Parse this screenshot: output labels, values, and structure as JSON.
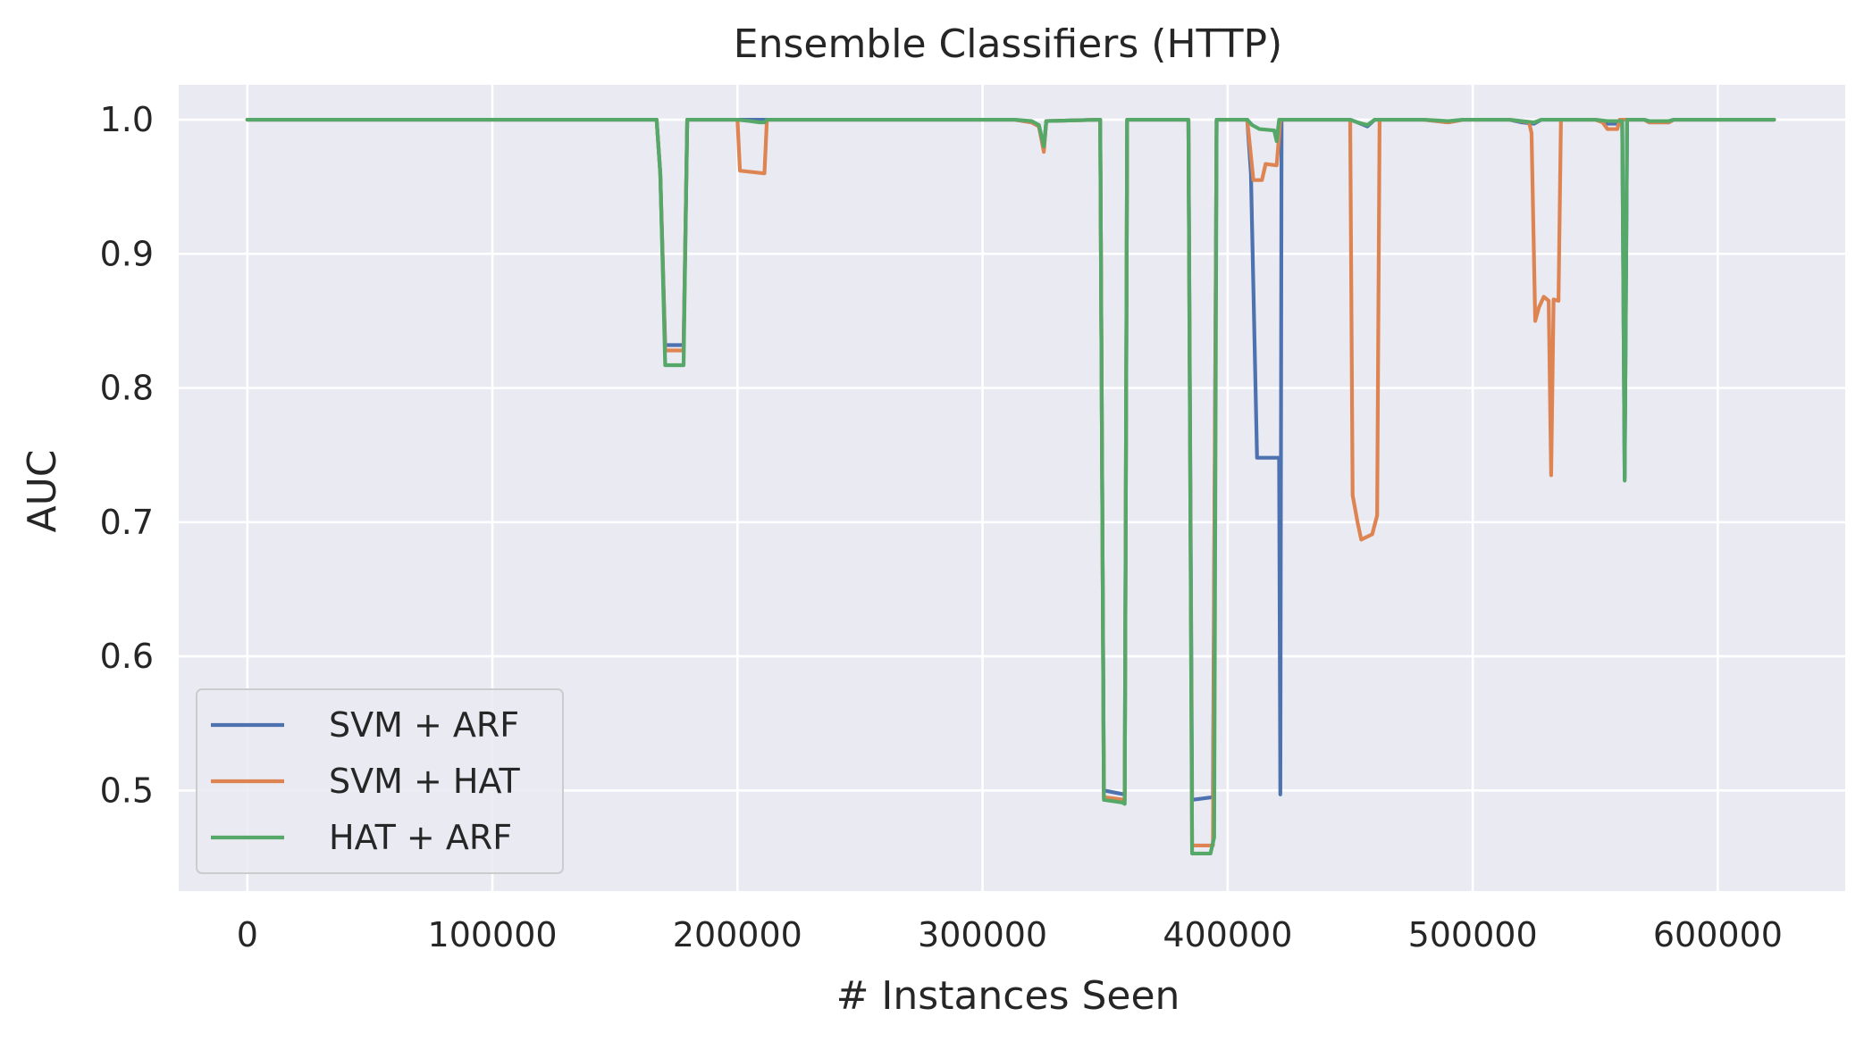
{
  "chart_data": {
    "type": "line",
    "title": "Ensemble Classifiers (HTTP)",
    "xlabel": "# Instances Seen",
    "ylabel": "AUC",
    "xlim": [
      -28000,
      652000
    ],
    "ylim": [
      0.425,
      1.026
    ],
    "x_ticks": [
      0,
      100000,
      200000,
      300000,
      400000,
      500000,
      600000
    ],
    "y_ticks": [
      0.5,
      0.6,
      0.7,
      0.8,
      0.9,
      1.0
    ],
    "x_tick_labels": [
      "0",
      "100000",
      "200000",
      "300000",
      "400000",
      "500000",
      "600000"
    ],
    "y_tick_labels": [
      "0.5",
      "0.6",
      "0.7",
      "0.8",
      "0.9",
      "1.0"
    ],
    "grid": true,
    "background": "#eaeaf2",
    "legend_position": "lower-left",
    "series": [
      {
        "name": "SVM + ARF",
        "color": "#4c72b0",
        "points": [
          [
            0,
            1.0
          ],
          [
            167000,
            1.0
          ],
          [
            168500,
            0.96
          ],
          [
            170500,
            0.832
          ],
          [
            178000,
            0.832
          ],
          [
            179500,
            1.0
          ],
          [
            211000,
            1.0
          ],
          [
            313000,
            1.0
          ],
          [
            320000,
            0.998
          ],
          [
            323000,
            0.995
          ],
          [
            325000,
            0.978
          ],
          [
            326000,
            0.999
          ],
          [
            348000,
            1.0
          ],
          [
            349500,
            0.5
          ],
          [
            358000,
            0.497
          ],
          [
            359000,
            1.0
          ],
          [
            384000,
            1.0
          ],
          [
            385500,
            0.493
          ],
          [
            394000,
            0.495
          ],
          [
            395500,
            1.0
          ],
          [
            408000,
            1.0
          ],
          [
            409500,
            0.96
          ],
          [
            412000,
            0.748
          ],
          [
            421000,
            0.748
          ],
          [
            421500,
            0.497
          ],
          [
            422000,
            1.0
          ],
          [
            450000,
            1.0
          ],
          [
            453000,
            0.998
          ],
          [
            457000,
            0.995
          ],
          [
            460000,
            1.0
          ],
          [
            480000,
            1.0
          ],
          [
            490000,
            0.998
          ],
          [
            496000,
            1.0
          ],
          [
            515000,
            1.0
          ],
          [
            520000,
            0.998
          ],
          [
            525000,
            0.997
          ],
          [
            528000,
            1.0
          ],
          [
            550000,
            1.0
          ],
          [
            555000,
            0.997
          ],
          [
            561000,
            0.997
          ],
          [
            562000,
            0.733
          ],
          [
            563000,
            1.0
          ],
          [
            570000,
            1.0
          ],
          [
            572000,
            0.998
          ],
          [
            580000,
            0.998
          ],
          [
            582000,
            1.0
          ],
          [
            623000,
            1.0
          ]
        ]
      },
      {
        "name": "SVM + HAT",
        "color": "#dd8452",
        "points": [
          [
            0,
            1.0
          ],
          [
            167000,
            1.0
          ],
          [
            168500,
            0.96
          ],
          [
            170500,
            0.828
          ],
          [
            178000,
            0.828
          ],
          [
            179500,
            1.0
          ],
          [
            200000,
            1.0
          ],
          [
            201000,
            0.962
          ],
          [
            211000,
            0.96
          ],
          [
            212000,
            1.0
          ],
          [
            313000,
            1.0
          ],
          [
            320000,
            0.998
          ],
          [
            323000,
            0.995
          ],
          [
            325000,
            0.976
          ],
          [
            326000,
            0.999
          ],
          [
            348000,
            1.0
          ],
          [
            349500,
            0.495
          ],
          [
            358000,
            0.493
          ],
          [
            359000,
            1.0
          ],
          [
            384000,
            1.0
          ],
          [
            385500,
            0.459
          ],
          [
            394000,
            0.459
          ],
          [
            395500,
            1.0
          ],
          [
            408000,
            1.0
          ],
          [
            410500,
            0.955
          ],
          [
            414000,
            0.955
          ],
          [
            415500,
            0.967
          ],
          [
            420000,
            0.966
          ],
          [
            421500,
            1.0
          ],
          [
            450000,
            1.0
          ],
          [
            451000,
            0.72
          ],
          [
            453000,
            0.7
          ],
          [
            454500,
            0.687
          ],
          [
            459000,
            0.691
          ],
          [
            461000,
            0.705
          ],
          [
            462000,
            1.0
          ],
          [
            480000,
            1.0
          ],
          [
            490000,
            0.998
          ],
          [
            496000,
            1.0
          ],
          [
            515000,
            1.0
          ],
          [
            523000,
            0.998
          ],
          [
            524000,
            0.99
          ],
          [
            525500,
            0.85
          ],
          [
            527000,
            0.86
          ],
          [
            529000,
            0.868
          ],
          [
            531000,
            0.865
          ],
          [
            532000,
            0.735
          ],
          [
            533000,
            0.866
          ],
          [
            535000,
            0.865
          ],
          [
            536000,
            1.0
          ],
          [
            550000,
            1.0
          ],
          [
            553000,
            0.998
          ],
          [
            555000,
            0.993
          ],
          [
            559000,
            0.993
          ],
          [
            560000,
            1.0
          ],
          [
            570000,
            1.0
          ],
          [
            572000,
            0.998
          ],
          [
            580000,
            0.998
          ],
          [
            582000,
            1.0
          ],
          [
            623000,
            1.0
          ]
        ]
      },
      {
        "name": "HAT + ARF",
        "color": "#55a868",
        "points": [
          [
            0,
            1.0
          ],
          [
            167000,
            1.0
          ],
          [
            168500,
            0.96
          ],
          [
            170500,
            0.817
          ],
          [
            178000,
            0.817
          ],
          [
            179500,
            1.0
          ],
          [
            200000,
            1.0
          ],
          [
            205000,
            0.999
          ],
          [
            209000,
            0.998
          ],
          [
            211000,
            0.998
          ],
          [
            212000,
            1.0
          ],
          [
            313000,
            1.0
          ],
          [
            320000,
            0.999
          ],
          [
            323000,
            0.996
          ],
          [
            325000,
            0.98
          ],
          [
            326000,
            0.999
          ],
          [
            348000,
            1.0
          ],
          [
            349500,
            0.493
          ],
          [
            357000,
            0.491
          ],
          [
            358000,
            0.49
          ],
          [
            359000,
            1.0
          ],
          [
            384000,
            1.0
          ],
          [
            385500,
            0.453
          ],
          [
            393000,
            0.453
          ],
          [
            394500,
            0.465
          ],
          [
            395500,
            1.0
          ],
          [
            408000,
            1.0
          ],
          [
            410000,
            0.996
          ],
          [
            413000,
            0.993
          ],
          [
            419000,
            0.992
          ],
          [
            420000,
            0.984
          ],
          [
            421000,
            1.0
          ],
          [
            450000,
            1.0
          ],
          [
            453000,
            0.998
          ],
          [
            457000,
            0.996
          ],
          [
            460000,
            1.0
          ],
          [
            480000,
            1.0
          ],
          [
            490000,
            0.999
          ],
          [
            496000,
            1.0
          ],
          [
            515000,
            1.0
          ],
          [
            520000,
            0.999
          ],
          [
            525000,
            0.998
          ],
          [
            528000,
            1.0
          ],
          [
            550000,
            1.0
          ],
          [
            555000,
            0.999
          ],
          [
            561000,
            0.999
          ],
          [
            562000,
            0.731
          ],
          [
            563000,
            1.0
          ],
          [
            570000,
            1.0
          ],
          [
            572000,
            0.999
          ],
          [
            580000,
            0.999
          ],
          [
            582000,
            1.0
          ],
          [
            623000,
            1.0
          ]
        ]
      }
    ]
  }
}
